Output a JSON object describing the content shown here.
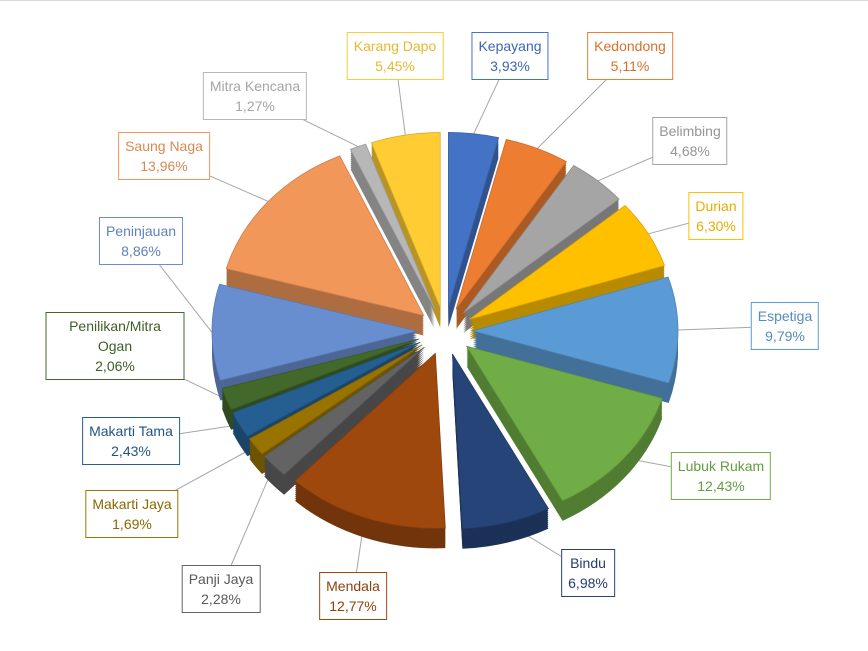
{
  "chart_data": {
    "type": "pie",
    "categories": [
      "Kepayang",
      "Kedondong",
      "Belimbing",
      "Durian",
      "Espetiga",
      "Lubuk Rukam",
      "Bindu",
      "Mendala",
      "Panji Jaya",
      "Makarti Jaya",
      "Makarti Tama",
      "Penilikan/Mitra Ogan",
      "Peninjauan",
      "Saung Naga",
      "Mitra Kencana",
      "Karang Dapo"
    ],
    "values": [
      3.93,
      5.11,
      4.68,
      6.3,
      9.79,
      12.43,
      6.98,
      12.77,
      2.28,
      1.69,
      2.43,
      2.06,
      8.86,
      13.96,
      1.27,
      5.45
    ],
    "value_labels": [
      "3,93%",
      "5,11%",
      "4,68%",
      "6,30%",
      "9,79%",
      "12,43%",
      "6,98%",
      "12,77%",
      "2,28%",
      "1,69%",
      "2,43%",
      "2,06%",
      "8,86%",
      "13,96%",
      "1,27%",
      "5,45%"
    ],
    "colors": [
      "#4472c4",
      "#ed7d31",
      "#a5a5a5",
      "#ffc000",
      "#5b9bd5",
      "#70ad47",
      "#264478",
      "#9e480e",
      "#636363",
      "#997300",
      "#255e91",
      "#43682b",
      "#698ed0",
      "#f1975a",
      "#b7b7b7",
      "#ffcd33"
    ]
  }
}
